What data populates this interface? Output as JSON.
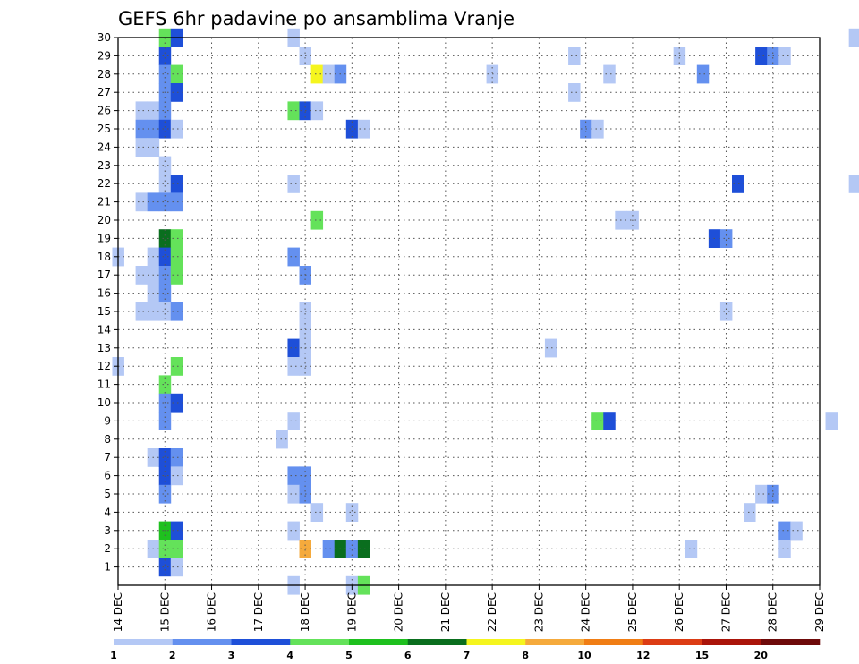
{
  "chart_data": {
    "type": "heatmap",
    "title": "GEFS 6hr padavine po ansamblima Vranje",
    "x_ticks": [
      "14 DEC",
      "15 DEC",
      "16 DEC",
      "17 DEC",
      "18 DEC",
      "19 DEC",
      "20 DEC",
      "21 DEC",
      "22 DEC",
      "23 DEC",
      "24 DEC",
      "25 DEC",
      "26 DEC",
      "27 DEC",
      "28 DEC",
      "29 DEC"
    ],
    "y_ticks": [
      "1",
      "2",
      "3",
      "4",
      "5",
      "6",
      "7",
      "8",
      "9",
      "10",
      "11",
      "12",
      "13",
      "14",
      "15",
      "16",
      "17",
      "18",
      "19",
      "20",
      "21",
      "22",
      "23",
      "24",
      "25",
      "26",
      "27",
      "28",
      "29",
      "30"
    ],
    "xlim": [
      "14 DEC",
      "29 DEC"
    ],
    "ylim": [
      0,
      30
    ],
    "x_step_hours": 6,
    "grid": true,
    "colorbar": {
      "ticks": [
        "1",
        "2",
        "3",
        "4",
        "5",
        "6",
        "7",
        "8",
        "10",
        "12",
        "15",
        "20"
      ],
      "colors": [
        "#b4c8f5",
        "#6490ef",
        "#1e4fd8",
        "#64e25a",
        "#1ec01e",
        "#0a6e1e",
        "#f5f51e",
        "#f5aa3c",
        "#f07d14",
        "#dc3c14",
        "#aa140a",
        "#6e0a0a"
      ]
    },
    "cell_values_note_levels": "value = color class index (1..12) matching colorbar",
    "cells": [
      [
        15.0,
        30,
        4
      ],
      [
        15.25,
        30,
        3
      ],
      [
        17.75,
        30,
        1
      ],
      [
        29.75,
        30,
        1
      ],
      [
        30.0,
        30,
        1
      ],
      [
        15.0,
        29,
        3
      ],
      [
        18.0,
        29,
        1
      ],
      [
        23.75,
        29,
        1
      ],
      [
        26.0,
        29,
        1
      ],
      [
        27.75,
        29,
        3
      ],
      [
        28.0,
        29,
        2
      ],
      [
        28.25,
        29,
        1
      ],
      [
        15.0,
        28,
        2
      ],
      [
        15.25,
        28,
        4
      ],
      [
        18.25,
        28,
        7
      ],
      [
        18.5,
        28,
        1
      ],
      [
        18.75,
        28,
        2
      ],
      [
        22.0,
        28,
        1
      ],
      [
        24.5,
        28,
        1
      ],
      [
        26.5,
        28,
        2
      ],
      [
        15.0,
        27,
        2
      ],
      [
        15.25,
        27,
        3
      ],
      [
        23.75,
        27,
        1
      ],
      [
        14.5,
        26,
        1
      ],
      [
        14.75,
        26,
        1
      ],
      [
        15.0,
        26,
        2
      ],
      [
        17.75,
        26,
        4
      ],
      [
        18.0,
        26,
        3
      ],
      [
        18.25,
        26,
        1
      ],
      [
        14.5,
        25,
        2
      ],
      [
        14.75,
        25,
        2
      ],
      [
        15.0,
        25,
        3
      ],
      [
        15.25,
        25,
        1
      ],
      [
        19.0,
        25,
        3
      ],
      [
        19.25,
        25,
        1
      ],
      [
        24.0,
        25,
        2
      ],
      [
        24.25,
        25,
        1
      ],
      [
        14.5,
        24,
        1
      ],
      [
        14.75,
        24,
        1
      ],
      [
        15.0,
        23,
        1
      ],
      [
        15.0,
        22,
        1
      ],
      [
        15.25,
        22,
        3
      ],
      [
        17.75,
        22,
        1
      ],
      [
        27.25,
        22,
        3
      ],
      [
        29.75,
        22,
        1
      ],
      [
        14.5,
        21,
        1
      ],
      [
        14.75,
        21,
        2
      ],
      [
        15.0,
        21,
        2
      ],
      [
        15.25,
        21,
        2
      ],
      [
        18.25,
        20,
        4
      ],
      [
        24.75,
        20,
        1
      ],
      [
        25.0,
        20,
        1
      ],
      [
        15.0,
        19,
        6
      ],
      [
        15.25,
        19,
        4
      ],
      [
        26.75,
        19,
        3
      ],
      [
        27.0,
        19,
        2
      ],
      [
        14.0,
        18,
        1
      ],
      [
        14.75,
        18,
        1
      ],
      [
        15.0,
        18,
        3
      ],
      [
        15.25,
        18,
        4
      ],
      [
        17.75,
        18,
        2
      ],
      [
        14.5,
        17,
        1
      ],
      [
        14.75,
        17,
        1
      ],
      [
        15.0,
        17,
        2
      ],
      [
        15.25,
        17,
        4
      ],
      [
        18.0,
        17,
        2
      ],
      [
        14.75,
        16,
        1
      ],
      [
        15.0,
        16,
        2
      ],
      [
        14.5,
        15,
        1
      ],
      [
        14.75,
        15,
        1
      ],
      [
        15.0,
        15,
        1
      ],
      [
        15.25,
        15,
        2
      ],
      [
        18.0,
        15,
        1
      ],
      [
        27.0,
        15,
        1
      ],
      [
        18.0,
        14,
        1
      ],
      [
        17.75,
        13,
        3
      ],
      [
        18.0,
        13,
        1
      ],
      [
        23.25,
        13,
        1
      ],
      [
        14.0,
        12,
        1
      ],
      [
        15.25,
        12,
        4
      ],
      [
        17.75,
        12,
        1
      ],
      [
        18.0,
        12,
        1
      ],
      [
        15.0,
        11,
        4
      ],
      [
        15.0,
        10,
        2
      ],
      [
        15.25,
        10,
        3
      ],
      [
        15.0,
        9,
        2
      ],
      [
        17.75,
        9,
        1
      ],
      [
        24.25,
        9,
        4
      ],
      [
        24.5,
        9,
        3
      ],
      [
        29.25,
        9,
        1
      ],
      [
        17.5,
        8,
        1
      ],
      [
        14.75,
        7,
        1
      ],
      [
        15.0,
        7,
        3
      ],
      [
        15.25,
        7,
        2
      ],
      [
        15.0,
        6,
        3
      ],
      [
        15.25,
        6,
        1
      ],
      [
        17.75,
        6,
        2
      ],
      [
        18.0,
        6,
        2
      ],
      [
        15.0,
        5,
        2
      ],
      [
        17.75,
        5,
        1
      ],
      [
        18.0,
        5,
        2
      ],
      [
        27.75,
        5,
        1
      ],
      [
        28.0,
        5,
        2
      ],
      [
        18.25,
        4,
        1
      ],
      [
        19.0,
        4,
        1
      ],
      [
        27.5,
        4,
        1
      ],
      [
        15.0,
        3,
        5
      ],
      [
        15.25,
        3,
        3
      ],
      [
        17.75,
        3,
        1
      ],
      [
        28.25,
        3,
        2
      ],
      [
        28.5,
        3,
        1
      ],
      [
        14.75,
        2,
        1
      ],
      [
        15.0,
        2,
        4
      ],
      [
        15.25,
        2,
        4
      ],
      [
        18.0,
        2,
        8
      ],
      [
        18.5,
        2,
        2
      ],
      [
        18.75,
        2,
        6
      ],
      [
        19.0,
        2,
        2
      ],
      [
        19.25,
        2,
        6
      ],
      [
        26.25,
        2,
        1
      ],
      [
        28.25,
        2,
        1
      ],
      [
        15.0,
        1,
        3
      ],
      [
        15.25,
        1,
        1
      ],
      [
        17.75,
        0,
        1
      ],
      [
        19.0,
        0,
        1
      ],
      [
        19.25,
        0,
        4
      ]
    ]
  }
}
